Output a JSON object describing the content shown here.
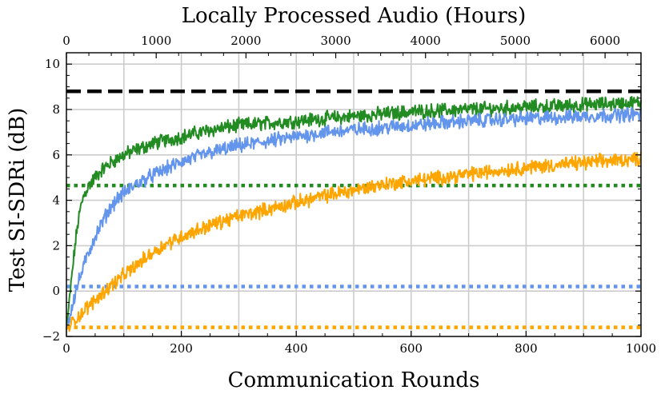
{
  "chart_data": {
    "type": "line",
    "title": "",
    "xlabel": "Communication Rounds",
    "ylabel": "Test SI-SDRi (dB)",
    "top_xlabel": "Locally Processed Audio (Hours)",
    "xlim": [
      0,
      1000
    ],
    "ylim": [
      -2,
      10.5
    ],
    "top_xlim": [
      0,
      6400
    ],
    "x_ticks": [
      0,
      200,
      400,
      600,
      800,
      1000
    ],
    "y_ticks": [
      -2,
      0,
      2,
      4,
      6,
      8,
      10
    ],
    "top_x_ticks": [
      0,
      1000,
      2000,
      3000,
      4000,
      5000,
      6000
    ],
    "grid": true,
    "legend": "none",
    "series": [
      {
        "color": "#228b22",
        "style": "solid",
        "x": [
          0,
          5,
          10,
          15,
          20,
          25,
          30,
          40,
          50,
          60,
          70,
          80,
          100,
          120,
          150,
          200,
          250,
          300,
          350,
          400,
          450,
          500,
          550,
          600,
          650,
          700,
          750,
          800,
          850,
          900,
          950,
          1000
        ],
        "values": [
          -1.7,
          -0.5,
          0.8,
          2.0,
          3.0,
          3.7,
          4.2,
          4.7,
          5.0,
          5.3,
          5.5,
          5.7,
          6.0,
          6.2,
          6.5,
          6.8,
          7.1,
          7.3,
          7.4,
          7.5,
          7.6,
          7.7,
          7.8,
          7.9,
          7.95,
          8.0,
          8.05,
          8.1,
          8.15,
          8.2,
          8.25,
          8.3
        ]
      },
      {
        "color": "#6495ed",
        "style": "solid",
        "x": [
          0,
          5,
          10,
          20,
          30,
          40,
          50,
          60,
          70,
          80,
          90,
          100,
          120,
          150,
          200,
          250,
          300,
          350,
          400,
          450,
          500,
          550,
          600,
          650,
          700,
          750,
          800,
          850,
          900,
          950,
          1000
        ],
        "values": [
          -1.7,
          -1.2,
          -0.6,
          0.3,
          1.1,
          1.8,
          2.4,
          2.9,
          3.4,
          3.8,
          4.1,
          4.3,
          4.7,
          5.1,
          5.7,
          6.1,
          6.4,
          6.6,
          6.8,
          7.0,
          7.1,
          7.2,
          7.3,
          7.4,
          7.5,
          7.55,
          7.6,
          7.65,
          7.7,
          7.75,
          7.8
        ]
      },
      {
        "color": "#ffa500",
        "style": "solid",
        "x": [
          0,
          10,
          25,
          50,
          75,
          100,
          125,
          150,
          175,
          200,
          250,
          300,
          350,
          400,
          450,
          500,
          550,
          600,
          650,
          700,
          750,
          800,
          850,
          900,
          950,
          1000
        ],
        "values": [
          -1.7,
          -1.4,
          -1.0,
          -0.4,
          0.2,
          0.7,
          1.2,
          1.7,
          2.1,
          2.4,
          2.9,
          3.3,
          3.6,
          3.9,
          4.2,
          4.45,
          4.7,
          4.85,
          5.0,
          5.15,
          5.3,
          5.45,
          5.55,
          5.65,
          5.75,
          5.85
        ]
      }
    ],
    "reference_lines": [
      {
        "y": 8.8,
        "color": "#000000",
        "style": "dashed"
      },
      {
        "y": 4.65,
        "color": "#228b22",
        "style": "dotted"
      },
      {
        "y": 0.2,
        "color": "#6495ed",
        "style": "dotted"
      },
      {
        "y": -1.6,
        "color": "#ffa500",
        "style": "dotted"
      }
    ]
  }
}
